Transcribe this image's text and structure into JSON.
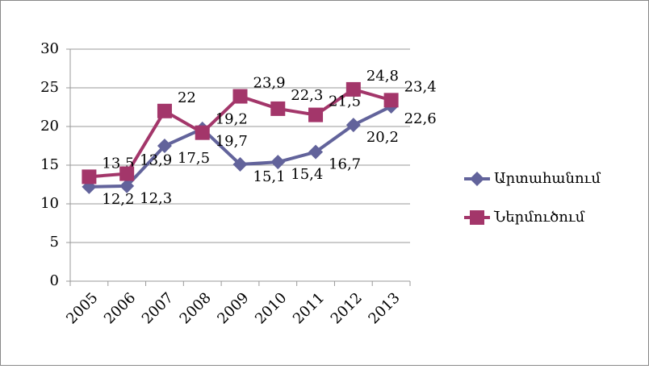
{
  "chart_data": {
    "type": "line",
    "categories": [
      "2005",
      "2006",
      "2007",
      "2008",
      "2009",
      "2010",
      "2011",
      "2012",
      "2013"
    ],
    "series": [
      {
        "name": "Արտահանում",
        "color": "#62639b",
        "marker": "diamond",
        "values": [
          12.2,
          12.3,
          17.5,
          19.7,
          15.1,
          15.4,
          16.7,
          20.2,
          22.6
        ],
        "value_labels": [
          "12,2",
          "12,3",
          "17,5",
          "19,7",
          "15,1",
          "15,4",
          "16,7",
          "20,2",
          "22,6"
        ]
      },
      {
        "name": "Ներմուծում",
        "color": "#a3366a",
        "marker": "square",
        "values": [
          13.5,
          13.9,
          22,
          19.2,
          23.9,
          22.3,
          21.5,
          24.8,
          23.4
        ],
        "value_labels": [
          "13,5",
          "13,9",
          "22",
          "19,2",
          "23,9",
          "22,3",
          "21,5",
          "24,8",
          "23,4"
        ]
      }
    ],
    "ylim": [
      0,
      30
    ],
    "yticks": [
      0,
      5,
      10,
      15,
      20,
      25,
      30
    ],
    "grid": true,
    "legend": "right"
  }
}
